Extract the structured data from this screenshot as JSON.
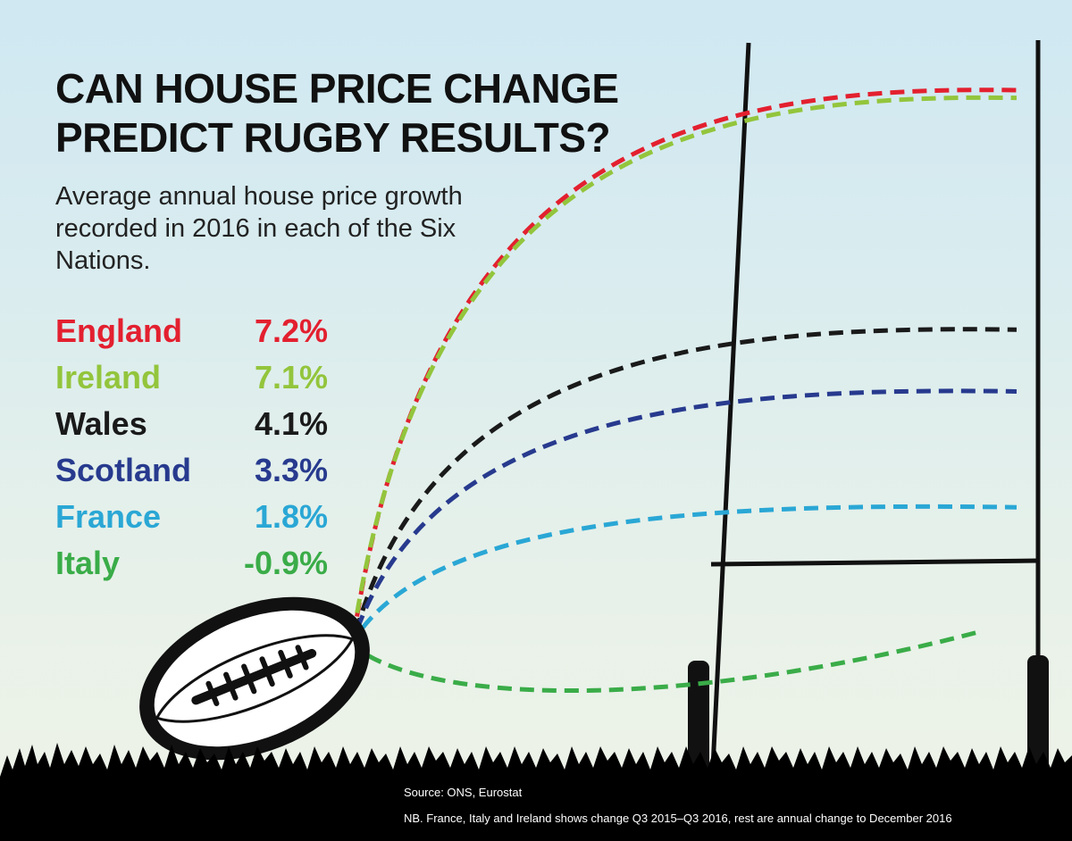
{
  "title": "CAN HOUSE PRICE CHANGE\nPREDICT RUGBY RESULTS?",
  "subtitle": "Average annual house price growth recorded in 2016 in each of the Six Nations.",
  "colors": {
    "England": "#e3202f",
    "Ireland": "#93c53c",
    "Wales": "#1a1a1a",
    "Scotland": "#273a8e",
    "France": "#2aa7d5",
    "Italy": "#3aac48",
    "ink": "#111111"
  },
  "chart_data": {
    "type": "bar",
    "categories": [
      "England",
      "Ireland",
      "Wales",
      "Scotland",
      "France",
      "Italy"
    ],
    "values": [
      7.2,
      7.1,
      4.1,
      3.3,
      1.8,
      -0.9
    ],
    "labels": [
      "7.2%",
      "7.1%",
      "4.1%",
      "3.3%",
      "1.8%",
      "-0.9%"
    ],
    "unit": "%",
    "title": "CAN HOUSE PRICE CHANGE PREDICT RUGBY RESULTS?"
  },
  "source": "Source: ONS, Eurostat",
  "note": "NB. France, Italy and Ireland shows change Q3 2015–Q3 2016, rest are annual change to December 2016",
  "icons": {
    "ball": "rugby-ball-icon",
    "posts": "goal-posts-icon",
    "grass": "grass-silhouette"
  }
}
